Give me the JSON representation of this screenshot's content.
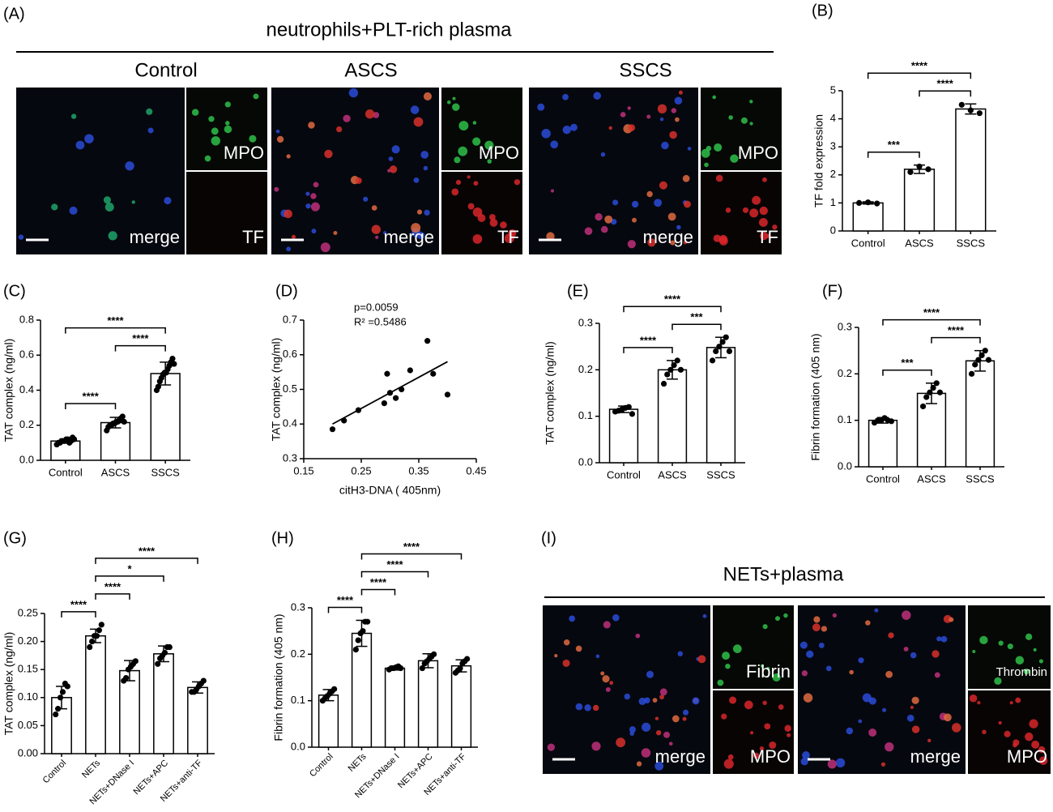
{
  "chart_data": [
    {
      "type": "bar",
      "panel": "(B)",
      "ylabel": "TF fold expression",
      "categories": [
        "Control",
        "ASCS",
        "SSCS"
      ],
      "values": [
        1.0,
        2.2,
        4.35
      ],
      "errors": [
        0.04,
        0.15,
        0.18
      ],
      "points": [
        [
          1.0,
          1.02,
          0.98
        ],
        [
          2.1,
          2.3,
          2.2
        ],
        [
          4.5,
          4.3,
          4.2
        ]
      ],
      "ylim": [
        0,
        5
      ],
      "yticks": [
        0,
        1,
        2,
        3,
        4,
        5
      ],
      "color": "#ffffff",
      "significance": [
        {
          "pair": [
            0,
            1
          ],
          "label": "***"
        },
        {
          "pair": [
            1,
            2
          ],
          "label": "****"
        },
        {
          "pair": [
            0,
            2
          ],
          "label": "****"
        }
      ]
    },
    {
      "type": "bar",
      "panel": "(C)",
      "ylabel": "TAT complex (ng/ml)",
      "categories": [
        "Control",
        "ASCS",
        "SSCS"
      ],
      "values": [
        0.11,
        0.215,
        0.495
      ],
      "errors": [
        0.012,
        0.03,
        0.065
      ],
      "points": [
        [
          0.09,
          0.1,
          0.1,
          0.11,
          0.11,
          0.11,
          0.12,
          0.12,
          0.1,
          0.11,
          0.13,
          0.12
        ],
        [
          0.17,
          0.19,
          0.2,
          0.2,
          0.21,
          0.21,
          0.22,
          0.22,
          0.23,
          0.24,
          0.25,
          0.22
        ],
        [
          0.4,
          0.42,
          0.45,
          0.47,
          0.49,
          0.5,
          0.5,
          0.52,
          0.54,
          0.56,
          0.58,
          0.55
        ]
      ],
      "ylim": [
        0,
        0.8
      ],
      "yticks": [
        {
          "value": 0,
          "label": "0.0"
        },
        0.2,
        0.4,
        0.6,
        0.8
      ],
      "color": "#ffffff",
      "significance": [
        {
          "pair": [
            0,
            1
          ],
          "label": "****"
        },
        {
          "pair": [
            1,
            2
          ],
          "label": "****"
        },
        {
          "pair": [
            0,
            2
          ],
          "label": "****"
        }
      ]
    },
    {
      "type": "scatter",
      "panel": "(D)",
      "xlabel": "citH3-DNA ( 405nm)",
      "ylabel": "TAT complex (ng/ml)",
      "x": [
        0.2,
        0.22,
        0.245,
        0.295,
        0.29,
        0.3,
        0.31,
        0.32,
        0.335,
        0.365,
        0.375,
        0.4
      ],
      "values": [
        0.385,
        0.41,
        0.44,
        0.545,
        0.46,
        0.49,
        0.475,
        0.5,
        0.555,
        0.64,
        0.545,
        0.485
      ],
      "trendline": {
        "x": [
          0.2,
          0.4
        ],
        "values": [
          0.4,
          0.58
        ]
      },
      "annotations": [
        "p=0.0059",
        "R² =0.5486"
      ],
      "xlim": [
        0.15,
        0.45
      ],
      "xticks": [
        0.15,
        0.25,
        0.35,
        0.45
      ],
      "ylim": [
        0.3,
        0.7
      ],
      "yticks": [
        0.3,
        0.4,
        0.5,
        0.6,
        0.7
      ],
      "color": "#000000"
    },
    {
      "type": "bar",
      "panel": "(E)",
      "ylabel": "TAT complex (ng/ml)",
      "categories": [
        "Control",
        "ASCS",
        "SSCS"
      ],
      "values": [
        0.115,
        0.2,
        0.248
      ],
      "errors": [
        0.007,
        0.02,
        0.022
      ],
      "points": [
        [
          0.11,
          0.112,
          0.115,
          0.118,
          0.12,
          0.105
        ],
        [
          0.17,
          0.19,
          0.2,
          0.21,
          0.22,
          0.2
        ],
        [
          0.22,
          0.24,
          0.25,
          0.26,
          0.27,
          0.24
        ]
      ],
      "ylim": [
        0,
        0.3
      ],
      "yticks": [
        {
          "value": 0,
          "label": "0.0"
        },
        0.1,
        0.2,
        0.3
      ],
      "color": "#ffffff",
      "significance": [
        {
          "pair": [
            0,
            1
          ],
          "label": "****"
        },
        {
          "pair": [
            1,
            2
          ],
          "label": "***"
        },
        {
          "pair": [
            0,
            2
          ],
          "label": "****"
        }
      ]
    },
    {
      "type": "bar",
      "panel": "(F)",
      "ylabel": "Fibrin formation (405 nm)",
      "categories": [
        "Control",
        "ASCS",
        "SSCS"
      ],
      "values": [
        0.1,
        0.158,
        0.228
      ],
      "errors": [
        0.006,
        0.022,
        0.022
      ],
      "points": [
        [
          0.095,
          0.1,
          0.1,
          0.105,
          0.1,
          0.098
        ],
        [
          0.13,
          0.15,
          0.16,
          0.17,
          0.18,
          0.16
        ],
        [
          0.2,
          0.22,
          0.23,
          0.24,
          0.25,
          0.23
        ]
      ],
      "ylim": [
        0,
        0.3
      ],
      "yticks": [
        {
          "value": 0,
          "label": "0.0"
        },
        0.1,
        0.2,
        0.3
      ],
      "color": "#ffffff",
      "significance": [
        {
          "pair": [
            0,
            1
          ],
          "label": "***"
        },
        {
          "pair": [
            1,
            2
          ],
          "label": "****"
        },
        {
          "pair": [
            0,
            2
          ],
          "label": "****"
        }
      ]
    },
    {
      "type": "bar",
      "panel": "(G)",
      "ylabel": "TAT complex (ng/ml)",
      "categories": [
        "Control",
        "NETs",
        "NETs+DNase I",
        "NETs+APC",
        "NETs+anti-TF"
      ],
      "values": [
        0.1,
        0.21,
        0.148,
        0.178,
        0.118
      ],
      "errors": [
        0.02,
        0.012,
        0.018,
        0.014,
        0.01
      ],
      "points": [
        [
          0.07,
          0.08,
          0.1,
          0.11,
          0.125,
          0.12
        ],
        [
          0.19,
          0.2,
          0.21,
          0.21,
          0.22,
          0.23
        ],
        [
          0.13,
          0.135,
          0.15,
          0.155,
          0.16,
          0.165
        ],
        [
          0.16,
          0.17,
          0.175,
          0.18,
          0.19,
          0.19
        ],
        [
          0.11,
          0.11,
          0.115,
          0.12,
          0.125,
          0.13
        ]
      ],
      "ylim": [
        0,
        0.25
      ],
      "yticks": [
        {
          "value": 0,
          "label": "0.00"
        },
        0.05,
        {
          "value": 0.1,
          "label": "0.10"
        },
        0.15,
        {
          "value": 0.2,
          "label": "0.20"
        },
        0.25
      ],
      "color": "#ffffff",
      "rotate_labels": true,
      "significance": [
        {
          "pair": [
            0,
            1
          ],
          "label": "****"
        },
        {
          "pair": [
            1,
            2
          ],
          "label": "****"
        },
        {
          "pair": [
            1,
            3
          ],
          "label": "*"
        },
        {
          "pair": [
            1,
            4
          ],
          "label": "****"
        }
      ]
    },
    {
      "type": "bar",
      "panel": "(H)",
      "ylabel": "Fibrin formation (405 nm)",
      "categories": [
        "Control",
        "NETs",
        "NETs+DNase I",
        "NETs+APC",
        "NETs+anti-TF"
      ],
      "values": [
        0.112,
        0.245,
        0.17,
        0.186,
        0.175
      ],
      "errors": [
        0.012,
        0.028,
        0.004,
        0.015,
        0.013
      ],
      "points": [
        [
          0.1,
          0.105,
          0.11,
          0.115,
          0.12,
          0.125
        ],
        [
          0.21,
          0.23,
          0.245,
          0.25,
          0.27,
          0.27
        ],
        [
          0.167,
          0.17,
          0.17,
          0.172,
          0.174,
          0.17
        ],
        [
          0.17,
          0.18,
          0.185,
          0.19,
          0.195,
          0.2
        ],
        [
          0.16,
          0.165,
          0.17,
          0.18,
          0.185,
          0.19
        ]
      ],
      "ylim": [
        0,
        0.3
      ],
      "yticks": [
        {
          "value": 0,
          "label": "0.0"
        },
        0.1,
        0.2,
        0.3
      ],
      "color": "#ffffff",
      "rotate_labels": true,
      "significance": [
        {
          "pair": [
            0,
            1
          ],
          "label": "****"
        },
        {
          "pair": [
            1,
            2
          ],
          "label": "****"
        },
        {
          "pair": [
            1,
            3
          ],
          "label": "****"
        },
        {
          "pair": [
            1,
            4
          ],
          "label": "****"
        }
      ]
    }
  ],
  "image_panels": [
    {
      "label": "(A)",
      "title": "neutrophils+PLT-rich plasma",
      "groups": [
        {
          "title": "Control",
          "merge": "merge",
          "top": "MPO",
          "bottom": "TF"
        },
        {
          "title": "ASCS",
          "merge": "merge",
          "top": "MPO",
          "bottom": "TF"
        },
        {
          "title": "SSCS",
          "merge": "merge",
          "top": "MPO",
          "bottom": "TF"
        }
      ]
    },
    {
      "label": "(I)",
      "title": "NETs+plasma",
      "groups": [
        {
          "merge": "merge",
          "top": "Fibrin",
          "bottom": "MPO"
        },
        {
          "merge": "merge",
          "top": "Thrombin",
          "bottom": "MPO"
        }
      ]
    }
  ]
}
